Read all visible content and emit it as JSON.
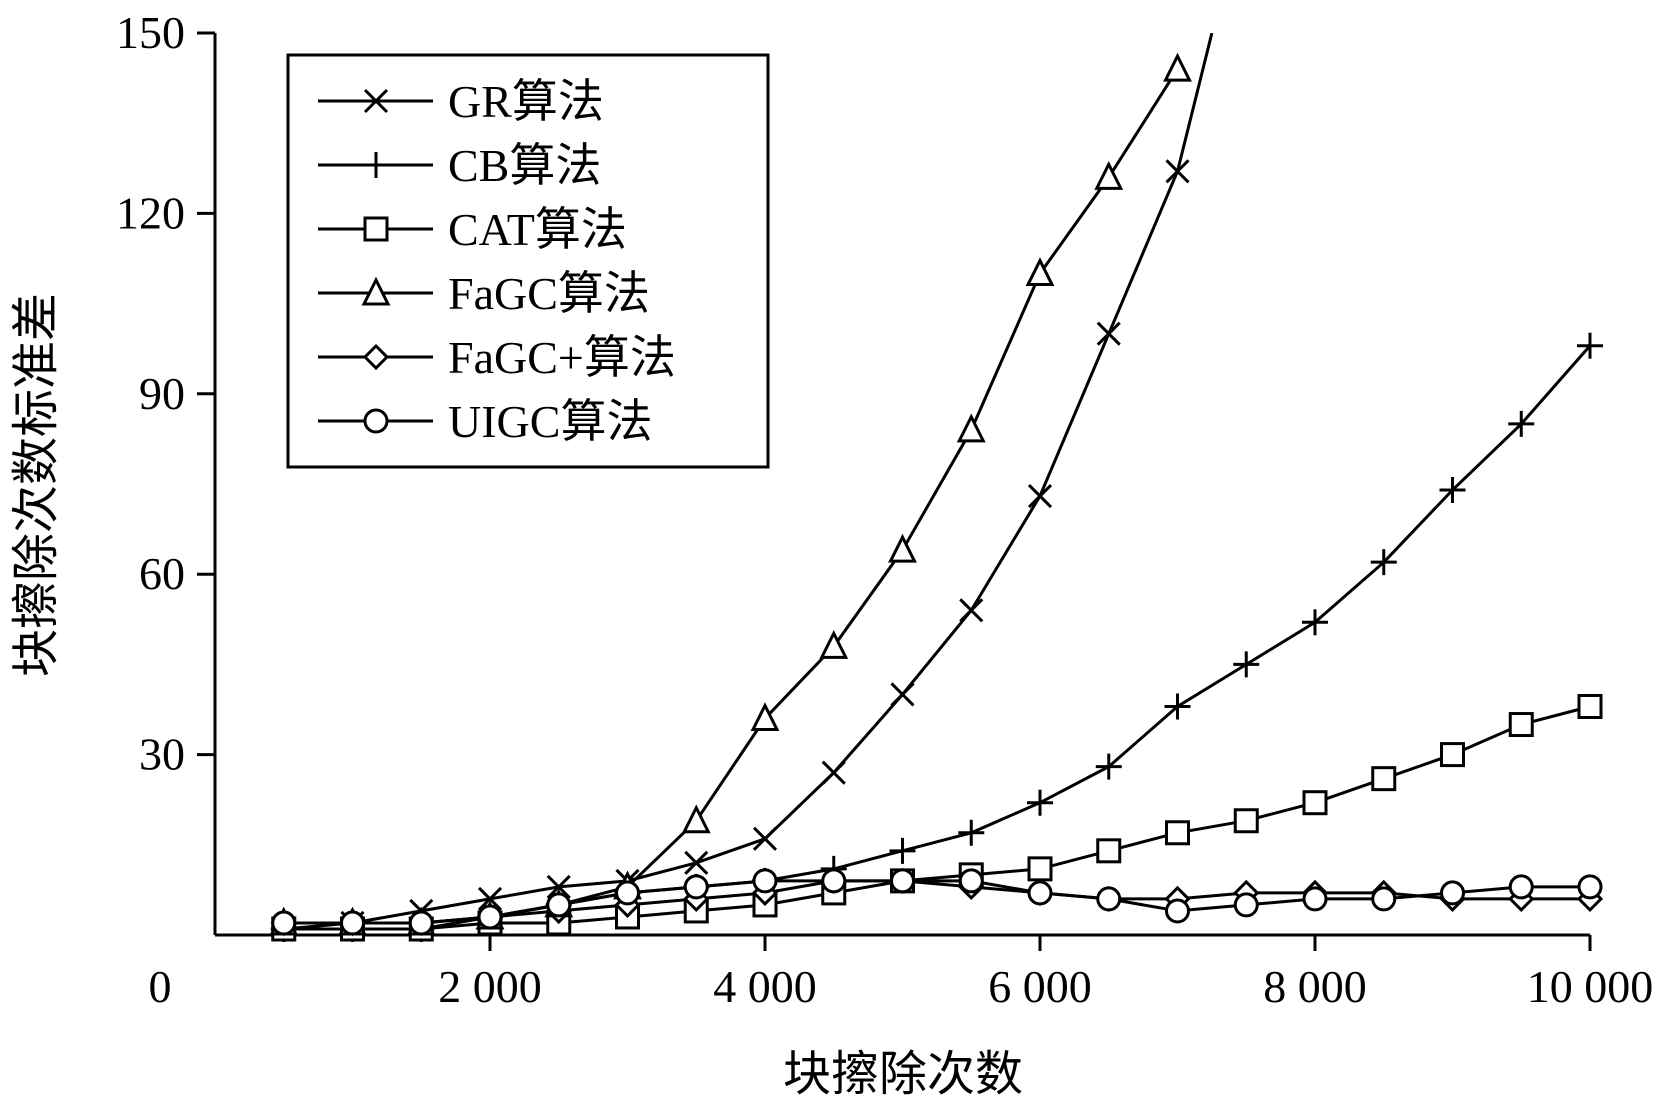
{
  "chart_data": {
    "type": "line",
    "title": "",
    "xlabel": "块擦除次数",
    "ylabel": "块擦除次数标准差",
    "xlim": [
      0,
      10000
    ],
    "ylim": [
      0,
      150
    ],
    "x_origin_label": "0",
    "x_ticks": [
      {
        "value": 2000,
        "label": "2 000"
      },
      {
        "value": 4000,
        "label": "4 000"
      },
      {
        "value": 6000,
        "label": "6 000"
      },
      {
        "value": 8000,
        "label": "8 000"
      },
      {
        "value": 10000,
        "label": "10 000"
      }
    ],
    "y_ticks": [
      {
        "value": 30,
        "label": "30"
      },
      {
        "value": 60,
        "label": "60"
      },
      {
        "value": 90,
        "label": "90"
      },
      {
        "value": 120,
        "label": "120"
      },
      {
        "value": 150,
        "label": "150"
      }
    ],
    "grid": false,
    "legend_position": "top-left",
    "series": [
      {
        "name": "GR算法",
        "marker": "x",
        "color": "#000000",
        "x": [
          500,
          1000,
          1500,
          2000,
          2500,
          3000,
          3500,
          4000,
          4500,
          5000,
          5500,
          6000,
          6500,
          7000,
          7250
        ],
        "y": [
          1,
          2,
          4,
          6,
          8,
          9,
          12,
          16,
          27,
          40,
          54,
          73,
          100,
          127,
          150
        ]
      },
      {
        "name": "CB算法",
        "marker": "plus",
        "color": "#000000",
        "x": [
          500,
          1000,
          1500,
          2000,
          2500,
          3000,
          3500,
          4000,
          4500,
          5000,
          5500,
          6000,
          6500,
          7000,
          7500,
          8000,
          8500,
          9000,
          9500,
          10000
        ],
        "y": [
          1,
          1,
          1,
          3,
          5,
          7,
          8,
          9,
          11,
          14,
          17,
          22,
          28,
          38,
          45,
          52,
          62,
          74,
          85,
          98
        ]
      },
      {
        "name": "CAT算法",
        "marker": "square",
        "color": "#000000",
        "x": [
          500,
          1000,
          1500,
          2000,
          2500,
          3000,
          3500,
          4000,
          4500,
          5000,
          5500,
          6000,
          6500,
          7000,
          7500,
          8000,
          8500,
          9000,
          9500,
          10000
        ],
        "y": [
          1,
          1,
          1,
          2,
          2,
          3,
          4,
          5,
          7,
          9,
          10,
          11,
          14,
          17,
          19,
          22,
          26,
          30,
          35,
          38
        ]
      },
      {
        "name": "FaGC算法",
        "marker": "triangle",
        "color": "#000000",
        "x": [
          500,
          1000,
          1500,
          2000,
          2500,
          3000,
          3500,
          4000,
          4500,
          5000,
          5500,
          6000,
          6500,
          7000
        ],
        "y": [
          2,
          2,
          2,
          3,
          5,
          8,
          19,
          36,
          48,
          64,
          84,
          110,
          126,
          144
        ]
      },
      {
        "name": "FaGC+算法",
        "marker": "diamond",
        "color": "#000000",
        "x": [
          500,
          1000,
          1500,
          2000,
          2500,
          3000,
          3500,
          4000,
          4500,
          5000,
          5500,
          6000,
          6500,
          7000,
          7500,
          8000,
          8500,
          9000,
          9500,
          10000
        ],
        "y": [
          2,
          2,
          2,
          3,
          4,
          5,
          6,
          7,
          9,
          9,
          8,
          7,
          6,
          6,
          7,
          7,
          7,
          6,
          6,
          6
        ]
      },
      {
        "name": "UIGC算法",
        "marker": "circle",
        "color": "#000000",
        "x": [
          500,
          1000,
          1500,
          2000,
          2500,
          3000,
          3500,
          4000,
          4500,
          5000,
          5500,
          6000,
          6500,
          7000,
          7500,
          8000,
          8500,
          9000,
          9500,
          10000
        ],
        "y": [
          2,
          2,
          2,
          3,
          5,
          7,
          8,
          9,
          9,
          9,
          9,
          7,
          6,
          4,
          5,
          6,
          6,
          7,
          8,
          8
        ]
      }
    ]
  }
}
